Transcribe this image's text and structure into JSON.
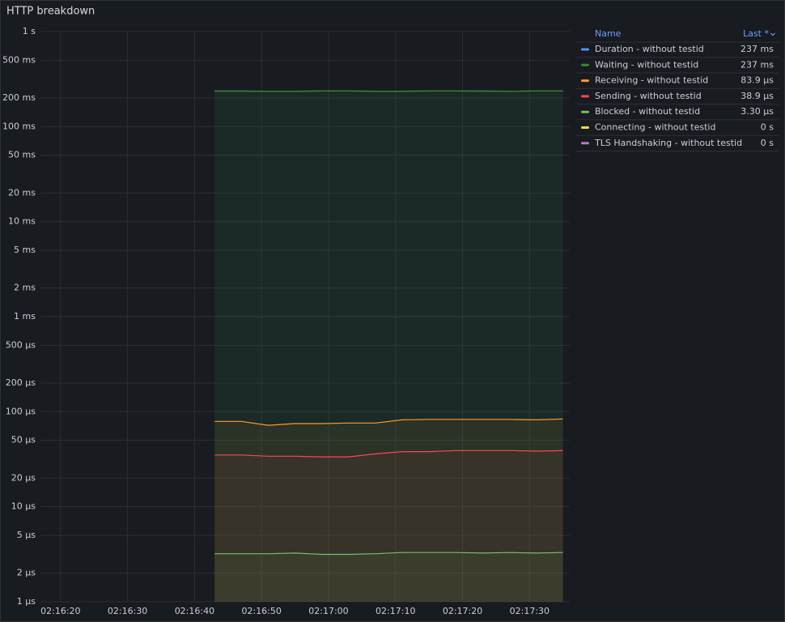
{
  "chart_data": {
    "type": "line",
    "title": "HTTP breakdown",
    "log_scale": true,
    "grid": true,
    "legend_position": "right",
    "legend_header": {
      "name": "Name",
      "last": "Last *"
    },
    "xlim": [
      "02:16:17",
      "02:17:36"
    ],
    "xticks": [
      "02:16:20",
      "02:16:30",
      "02:16:40",
      "02:16:50",
      "02:17:00",
      "02:17:10",
      "02:17:20",
      "02:17:30"
    ],
    "ylim": [
      1e-06,
      1
    ],
    "yticks": [
      {
        "value": 1,
        "label": "1 s"
      },
      {
        "value": 0.5,
        "label": "500 ms"
      },
      {
        "value": 0.2,
        "label": "200 ms"
      },
      {
        "value": 0.1,
        "label": "100 ms"
      },
      {
        "value": 0.05,
        "label": "50 ms"
      },
      {
        "value": 0.02,
        "label": "20 ms"
      },
      {
        "value": 0.01,
        "label": "10 ms"
      },
      {
        "value": 0.005,
        "label": "5 ms"
      },
      {
        "value": 0.002,
        "label": "2 ms"
      },
      {
        "value": 0.001,
        "label": "1 ms"
      },
      {
        "value": 0.0005,
        "label": "500 µs"
      },
      {
        "value": 0.0002,
        "label": "200 µs"
      },
      {
        "value": 0.0001,
        "label": "100 µs"
      },
      {
        "value": 5e-05,
        "label": "50 µs"
      },
      {
        "value": 2e-05,
        "label": "20 µs"
      },
      {
        "value": 1e-05,
        "label": "10 µs"
      },
      {
        "value": 5e-06,
        "label": "5 µs"
      },
      {
        "value": 2e-06,
        "label": "2 µs"
      },
      {
        "value": 1e-06,
        "label": "1 µs"
      }
    ],
    "x": [
      "02:16:43",
      "02:16:47",
      "02:16:51",
      "02:16:55",
      "02:16:59",
      "02:17:03",
      "02:17:07",
      "02:17:11",
      "02:17:15",
      "02:17:19",
      "02:17:23",
      "02:17:27",
      "02:17:31",
      "02:17:35"
    ],
    "series": [
      {
        "name": "Duration - without testid",
        "color": "#5794f2",
        "fill": "#2a8f8a",
        "values": [
          0.237,
          0.237,
          0.236,
          0.236,
          0.237,
          0.237,
          0.236,
          0.236,
          0.237,
          0.237,
          0.237,
          0.236,
          0.237,
          0.237
        ],
        "last": {
          "value": 0.237,
          "label": "237 ms"
        }
      },
      {
        "name": "Waiting - without testid",
        "color": "#37872d",
        "fill": "#37872d",
        "values": [
          0.236,
          0.236,
          0.236,
          0.236,
          0.237,
          0.237,
          0.236,
          0.236,
          0.237,
          0.237,
          0.236,
          0.236,
          0.237,
          0.237
        ],
        "last": {
          "value": 0.237,
          "label": "237 ms"
        }
      },
      {
        "name": "Receiving - without testid",
        "color": "#ff9830",
        "fill": "#ff9830",
        "values": [
          7.9e-05,
          7.9e-05,
          7.2e-05,
          7.5e-05,
          7.5e-05,
          7.6e-05,
          7.6e-05,
          8.2e-05,
          8.3e-05,
          8.3e-05,
          8.3e-05,
          8.3e-05,
          8.2e-05,
          8.39e-05
        ],
        "last": {
          "value": 8.39e-05,
          "label": "83.9 µs"
        }
      },
      {
        "name": "Sending - without testid",
        "color": "#f2495c",
        "fill": "#f2495c",
        "values": [
          3.5e-05,
          3.5e-05,
          3.4e-05,
          3.4e-05,
          3.35e-05,
          3.35e-05,
          3.6e-05,
          3.8e-05,
          3.8e-05,
          3.9e-05,
          3.9e-05,
          3.9e-05,
          3.85e-05,
          3.89e-05
        ],
        "last": {
          "value": 3.89e-05,
          "label": "38.9 µs"
        }
      },
      {
        "name": "Blocked - without testid",
        "color": "#73bf69",
        "fill": "#73bf69",
        "values": [
          3.2e-06,
          3.2e-06,
          3.2e-06,
          3.25e-06,
          3.15e-06,
          3.15e-06,
          3.2e-06,
          3.3e-06,
          3.3e-06,
          3.3e-06,
          3.25e-06,
          3.3e-06,
          3.25e-06,
          3.3e-06
        ],
        "last": {
          "value": 3.3e-06,
          "label": "3.30 µs"
        }
      },
      {
        "name": "Connecting - without testid",
        "color": "#fade2a",
        "last": {
          "value": 0,
          "label": "0 s"
        }
      },
      {
        "name": "TLS Handshaking - without testid",
        "color": "#b877d9",
        "last": {
          "value": 0,
          "label": "0 s"
        }
      }
    ]
  }
}
